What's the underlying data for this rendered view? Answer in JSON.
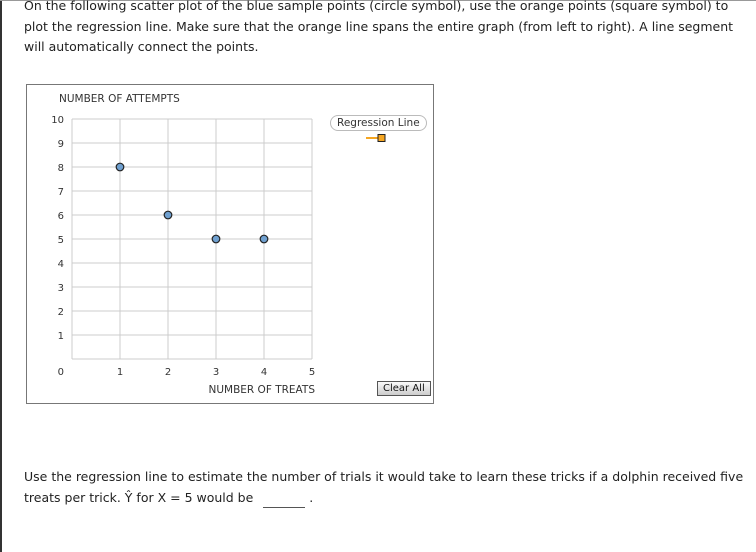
{
  "instructions": "On the following scatter plot of the blue sample points (circle symbol), use the orange points (square symbol) to plot the regression line. Make sure that the orange line spans the entire graph (from left to right). A line segment will automatically connect the points.",
  "question_prefix": "Use the regression line to estimate the number of trials it would take to learn these tricks if a dolphin received five treats per trick. Ŷ for X = 5 would be",
  "question_suffix": ".",
  "answer_value": "",
  "legend_label": "Regression Line",
  "clear_button": "Clear All",
  "colors": {
    "sample_point": "#6fa0d0",
    "regression": "#f5a623",
    "grid": "#cccccc"
  },
  "chart_data": {
    "type": "scatter",
    "xlabel": "NUMBER OF TREATS",
    "ylabel": "NUMBER OF ATTEMPTS",
    "xlim": [
      0,
      5
    ],
    "ylim": [
      0,
      10
    ],
    "xticks": [
      "1",
      "2",
      "3",
      "4",
      "5"
    ],
    "yticks": [
      "0",
      "1",
      "2",
      "3",
      "4",
      "5",
      "6",
      "7",
      "8",
      "9",
      "10"
    ],
    "grid": true,
    "legend_position": "top-right",
    "points": [
      {
        "x": 1,
        "y": 8
      },
      {
        "x": 2,
        "y": 6
      },
      {
        "x": 3,
        "y": 5
      },
      {
        "x": 4,
        "y": 5
      }
    ]
  }
}
